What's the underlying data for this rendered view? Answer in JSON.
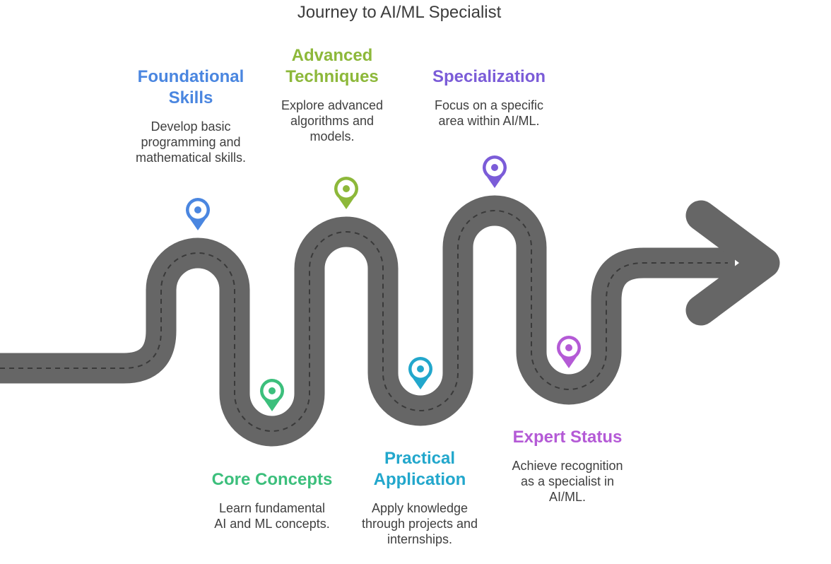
{
  "title": "Journey to AI/ML Specialist",
  "colors": {
    "road": "#666666",
    "dash": "#3a3a3a"
  },
  "steps": [
    {
      "heading": "Foundational\nSkills",
      "description": "Develop basic\nprogramming and\nmathematical skills.",
      "color": "#4a86e0",
      "icon": "map-pin-icon"
    },
    {
      "heading": "Core Concepts",
      "description": "Learn fundamental\nAI and ML concepts.",
      "color": "#3cbf7c",
      "icon": "map-pin-icon"
    },
    {
      "heading": "Advanced\nTechniques",
      "description": "Explore advanced\nalgorithms and\nmodels.",
      "color": "#8db83a",
      "icon": "map-pin-icon"
    },
    {
      "heading": "Practical\nApplication",
      "description": "Apply knowledge\nthrough projects and\ninternships.",
      "color": "#22a7cc",
      "icon": "map-pin-icon"
    },
    {
      "heading": "Specialization",
      "description": "Focus on a specific\narea within AI/ML.",
      "color": "#7b5cd8",
      "icon": "map-pin-icon"
    },
    {
      "heading": "Expert Status",
      "description": "Achieve recognition\nas a specialist in\nAI/ML.",
      "color": "#b45ad6",
      "icon": "map-pin-icon"
    }
  ]
}
